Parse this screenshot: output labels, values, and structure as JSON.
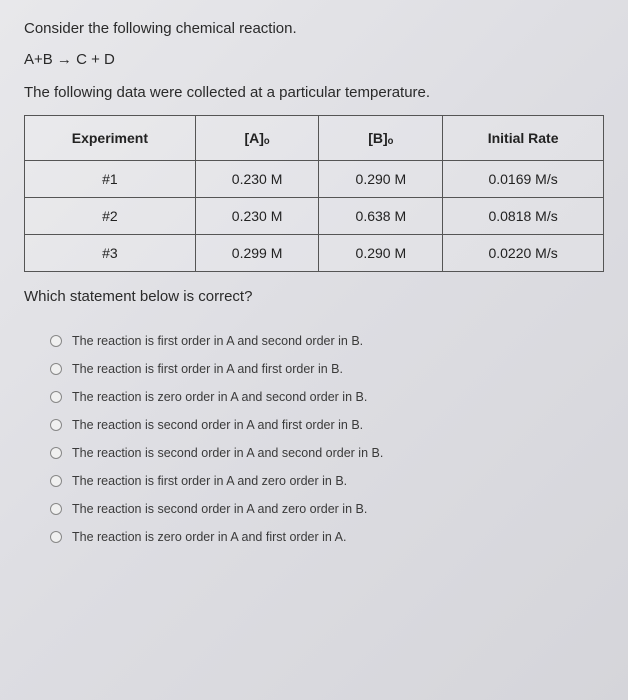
{
  "intro": "Consider the following chemical reaction.",
  "equation": "A+B → C + D",
  "data_intro": "The following data were collected at a particular temperature.",
  "table": {
    "headers": [
      "Experiment",
      "[A]ₒ",
      "[B]ₒ",
      "Initial Rate"
    ],
    "rows": [
      [
        "#1",
        "0.230 M",
        "0.290 M",
        "0.0169 M/s"
      ],
      [
        "#2",
        "0.230 M",
        "0.638 M",
        "0.0818 M/s"
      ],
      [
        "#3",
        "0.299 M",
        "0.290 M",
        "0.0220 M/s"
      ]
    ],
    "col_widths": [
      "25%",
      "25%",
      "25%",
      "25%"
    ],
    "border_color": "#555",
    "header_bg": "transparent",
    "cell_bg": "transparent"
  },
  "question": "Which statement below is correct?",
  "options": [
    "The reaction is first order in A and second order in B.",
    "The reaction is first order in A and first order in B.",
    "The reaction is zero order in A and second order in B.",
    "The reaction is second order in A and first order in B.",
    "The reaction is second order in A and second order in B.",
    "The reaction is first order in A and zero order in B.",
    "The reaction is second order in A and zero order in B.",
    "The reaction is zero order in A and first order in A."
  ],
  "colors": {
    "background_gradient": [
      "#e8e8eb",
      "#dddde2",
      "#d5d5da"
    ],
    "text": "#2a2a2a",
    "option_text": "#3a3a3a",
    "radio_border": "#888"
  },
  "fonts": {
    "body_size": 15,
    "table_size": 14,
    "option_size": 12.5
  }
}
